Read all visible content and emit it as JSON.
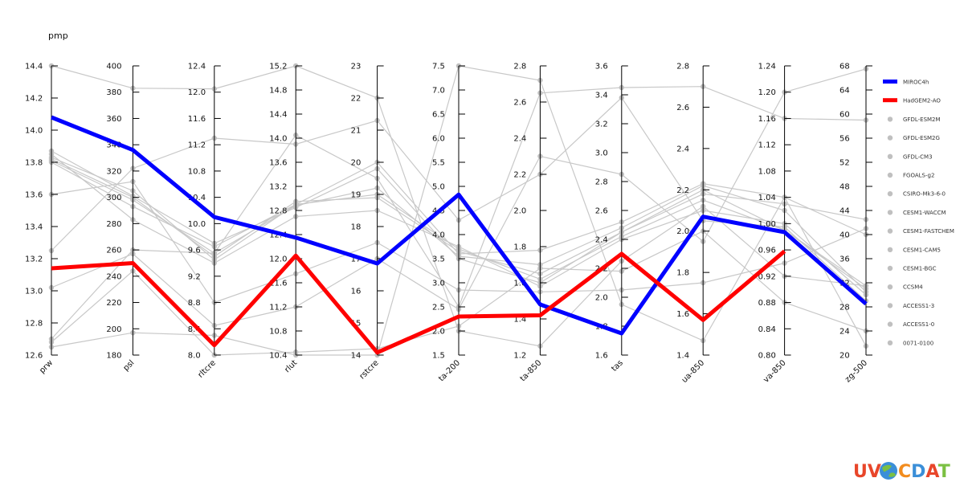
{
  "chart_data": {
    "type": "parallel-coordinates",
    "title": "pmp",
    "axes": [
      {
        "name": "prw",
        "ticks": [
          "12.6",
          "12.8",
          "13.0",
          "13.2",
          "13.4",
          "13.6",
          "13.8",
          "14.0",
          "14.2",
          "14.4"
        ],
        "range": [
          12.6,
          14.4
        ]
      },
      {
        "name": "psl",
        "ticks": [
          "180",
          "200",
          "220",
          "240",
          "260",
          "280",
          "300",
          "320",
          "340",
          "360",
          "380",
          "400"
        ],
        "range": [
          180,
          400
        ]
      },
      {
        "name": "rltcre",
        "ticks": [
          "8.0",
          "8.4",
          "8.8",
          "9.2",
          "9.6",
          "10.0",
          "10.4",
          "10.8",
          "11.2",
          "11.6",
          "12.0",
          "12.4"
        ],
        "range": [
          8.0,
          12.4
        ]
      },
      {
        "name": "rlut",
        "ticks": [
          "10.4",
          "10.8",
          "11.2",
          "11.6",
          "12.0",
          "12.4",
          "12.8",
          "13.2",
          "13.6",
          "14.0",
          "14.4",
          "14.8",
          "15.2"
        ],
        "range": [
          10.4,
          15.2
        ]
      },
      {
        "name": "rstcre",
        "ticks": [
          "14",
          "15",
          "16",
          "17",
          "18",
          "19",
          "20",
          "21",
          "22",
          "23"
        ],
        "range": [
          14,
          23
        ]
      },
      {
        "name": "ta-200",
        "ticks": [
          "1.5",
          "2.0",
          "2.5",
          "3.0",
          "3.5",
          "4.0",
          "4.5",
          "5.0",
          "5.5",
          "6.0",
          "6.5",
          "7.0",
          "7.5"
        ],
        "range": [
          1.5,
          7.5
        ]
      },
      {
        "name": "ta-850",
        "ticks": [
          "1.2",
          "1.4",
          "1.6",
          "1.8",
          "2.0",
          "2.2",
          "2.4",
          "2.6",
          "2.8"
        ],
        "range": [
          1.2,
          2.8
        ]
      },
      {
        "name": "tas",
        "ticks": [
          "1.6",
          "1.8",
          "2.0",
          "2.2",
          "2.4",
          "2.6",
          "2.8",
          "3.0",
          "3.2",
          "3.4",
          "3.6"
        ],
        "range": [
          1.6,
          3.6
        ]
      },
      {
        "name": "ua-850",
        "ticks": [
          "1.4",
          "1.6",
          "1.8",
          "2.0",
          "2.2",
          "2.4",
          "2.6",
          "2.8"
        ],
        "range": [
          1.4,
          2.8
        ]
      },
      {
        "name": "va-850",
        "ticks": [
          "0.80",
          "0.84",
          "0.88",
          "0.92",
          "0.96",
          "1.00",
          "1.04",
          "1.08",
          "1.12",
          "1.16",
          "1.20",
          "1.24"
        ],
        "range": [
          0.8,
          1.24
        ]
      },
      {
        "name": "zg-500",
        "ticks": [
          "20",
          "24",
          "28",
          "32",
          "36",
          "40",
          "44",
          "48",
          "52",
          "56",
          "60",
          "64",
          "68"
        ],
        "range": [
          20,
          68
        ]
      }
    ],
    "series": [
      {
        "name": "MIROC4h",
        "color": "#0000ff",
        "highlight": true,
        "values": [
          14.08,
          336,
          10.1,
          12.35,
          16.85,
          4.83,
          1.48,
          1.75,
          2.07,
          0.987,
          28.5
        ]
      },
      {
        "name": "HadGEM2-AO",
        "color": "#ff0000",
        "highlight": true,
        "values": [
          13.14,
          250,
          8.15,
          12.05,
          14.08,
          2.3,
          1.42,
          2.3,
          1.57,
          0.958,
          null
        ]
      },
      {
        "name": "GFDL-ESM2M",
        "color": "#c8c8c8",
        "values": [
          13.8,
          293,
          9.65,
          12.9,
          20.0,
          3.6,
          1.78,
          2.52,
          2.23,
          1.04,
          40.0
        ]
      },
      {
        "name": "GFDL-ESM2G",
        "color": "#c8c8c8",
        "values": [
          13.87,
          301,
          9.7,
          12.85,
          19.8,
          3.5,
          1.6,
          2.45,
          2.18,
          1.03,
          42.5
        ]
      },
      {
        "name": "GFDL-CM3",
        "color": "#c8c8c8",
        "values": [
          14.4,
          383,
          12.05,
          15.2,
          22.0,
          2.0,
          1.25,
          2.25,
          2.12,
          0.92,
          31.5
        ]
      },
      {
        "name": "FGOALS-g2",
        "color": "#c8c8c8",
        "values": [
          12.65,
          197,
          8.3,
          10.4,
          14.0,
          7.5,
          2.72,
          1.95,
          1.47,
          1.04,
          21.5
        ]
      },
      {
        "name": "CSIRO-Mk3-6-0",
        "color": "#c8c8c8",
        "values": [
          12.7,
          260,
          9.55,
          14.05,
          19.5,
          2.5,
          2.65,
          3.45,
          2.7,
          1.16,
          59.0
        ]
      },
      {
        "name": "CESM1-WACCM",
        "color": "#c8c8c8",
        "values": [
          13.82,
          300,
          9.5,
          12.95,
          18.9,
          3.65,
          1.65,
          2.45,
          2.2,
          0.99,
          31.0
        ]
      },
      {
        "name": "CESM1-FASTCHEM",
        "color": "#c8c8c8",
        "values": [
          13.83,
          305,
          9.45,
          12.9,
          19.0,
          3.7,
          1.62,
          2.42,
          2.15,
          0.99,
          31.5
        ]
      },
      {
        "name": "CESM1-CAM5",
        "color": "#c8c8c8",
        "values": [
          13.6,
          312,
          8.8,
          11.75,
          17.5,
          2.85,
          1.55,
          2.05,
          1.75,
          0.94,
          41.0
        ]
      },
      {
        "name": "CESM1-BGC",
        "color": "#c8c8c8",
        "values": [
          13.81,
          298,
          9.55,
          12.88,
          19.2,
          3.55,
          1.7,
          2.48,
          2.22,
          1.02,
          30.5
        ]
      },
      {
        "name": "CCSM4",
        "color": "#c8c8c8",
        "values": [
          13.85,
          283,
          9.4,
          12.7,
          18.5,
          3.75,
          1.58,
          2.4,
          2.1,
          1.0,
          30.0
        ]
      },
      {
        "name": "ACCESS1-3",
        "color": "#c8c8c8",
        "values": [
          13.02,
          257,
          8.45,
          11.2,
          17.0,
          2.45,
          2.3,
          2.85,
          1.95,
          1.2,
          67.5
        ]
      },
      {
        "name": "ACCESS1-0",
        "color": "#c8c8c8",
        "values": [
          13.25,
          322,
          11.3,
          13.9,
          21.3,
          4.3,
          2.2,
          3.38,
          2.05,
          0.995,
          29.0
        ]
      },
      {
        "name": "0071-0100",
        "color": "#c8c8c8",
        "values": [
          12.68,
          244,
          8.0,
          10.45,
          14.2,
          2.1,
          1.68,
          2.18,
          2.0,
          0.88,
          24.0
        ]
      }
    ]
  },
  "logo": {
    "text_uv": "UV",
    "text_cdat": "CDAT"
  }
}
